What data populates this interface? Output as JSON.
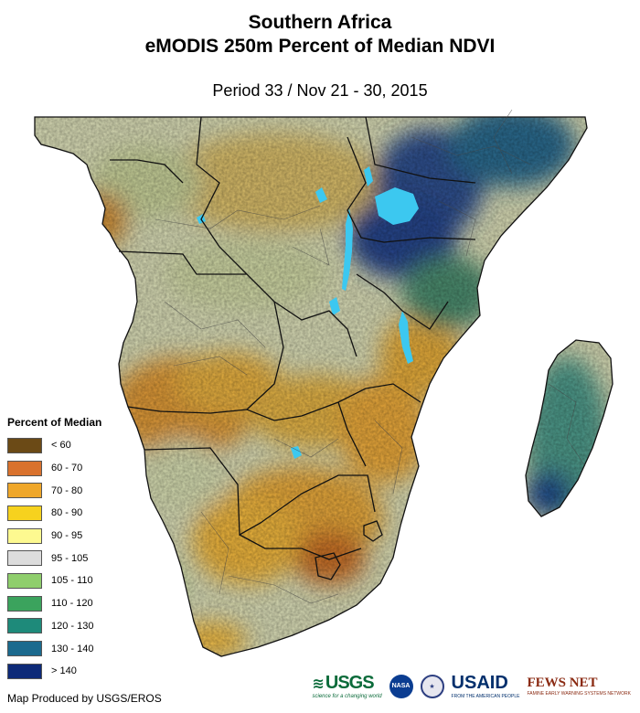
{
  "header": {
    "title_line1": "Southern Africa",
    "title_line2": "eMODIS 250m Percent of Median NDVI",
    "period": "Period 33 / Nov 21 - 30, 2015"
  },
  "legend": {
    "title": "Percent of Median",
    "items": [
      {
        "label": "< 60",
        "color": "#6b4a16"
      },
      {
        "label": "60 - 70",
        "color": "#d9722e"
      },
      {
        "label": "70 - 80",
        "color": "#efa72a"
      },
      {
        "label": "80 - 90",
        "color": "#f6d21e"
      },
      {
        "label": "90 - 95",
        "color": "#fdf990"
      },
      {
        "label": "95 - 105",
        "color": "#dcdcdc"
      },
      {
        "label": "105 - 110",
        "color": "#8fce6c"
      },
      {
        "label": "110 - 120",
        "color": "#3ba35d"
      },
      {
        "label": "120 - 130",
        "color": "#1e8a7a"
      },
      {
        "label": "130 - 140",
        "color": "#1b6a8e"
      },
      {
        "label": "> 140",
        "color": "#0d2a78"
      }
    ]
  },
  "footer": {
    "credit": "Map Produced by USGS/EROS",
    "logos": {
      "usgs": "USGS",
      "usgs_tagline": "science for a changing world",
      "nasa": "NASA",
      "usaid": "USAID",
      "usaid_tagline": "FROM THE AMERICAN PEOPLE",
      "fews": "FEWS NET",
      "fews_tagline": "FAMINE EARLY WARNING SYSTEMS NETWORK"
    }
  },
  "colors": {
    "water": "#3cc8f0",
    "border": "#111111"
  }
}
